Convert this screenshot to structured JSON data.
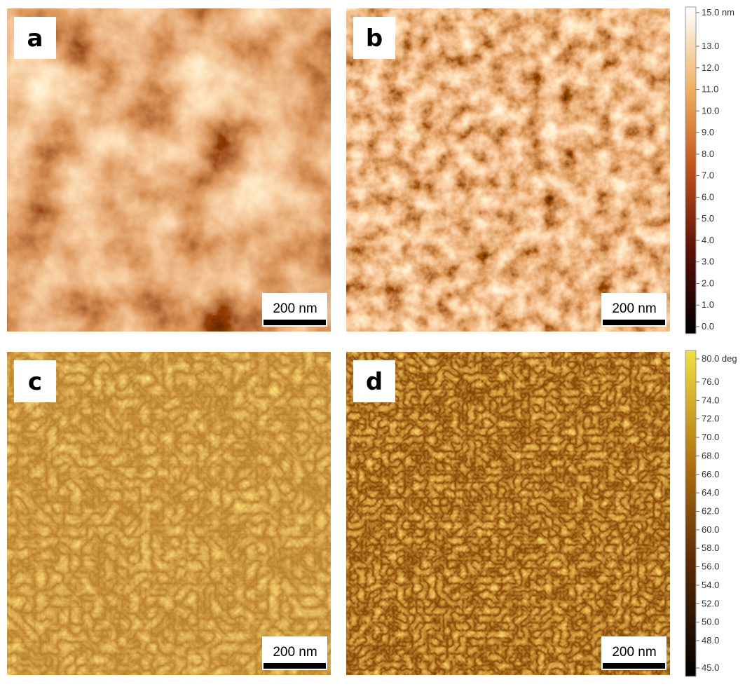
{
  "panels": [
    {
      "label": "a",
      "scale_bar": "200 nm"
    },
    {
      "label": "b",
      "scale_bar": "200 nm"
    },
    {
      "label": "c",
      "scale_bar": "200 nm"
    },
    {
      "label": "d",
      "scale_bar": "200 nm"
    }
  ],
  "colorbars": [
    {
      "ticks": [
        "15.0 nm",
        "13.0",
        "12.0",
        "11.0",
        "10.0",
        "9.0",
        "8.0",
        "7.0",
        "6.0",
        "5.0",
        "4.0",
        "3.0",
        "2.0",
        "1.0",
        "0.0"
      ]
    },
    {
      "ticks": [
        "80.0 deg",
        "76.0",
        "74.0",
        "72.0",
        "70.0",
        "68.0",
        "66.0",
        "64.0",
        "62.0",
        "60.0",
        "58.0",
        "56.0",
        "54.0",
        "52.0",
        "50.0",
        "48.0",
        "45.0"
      ]
    }
  ]
}
